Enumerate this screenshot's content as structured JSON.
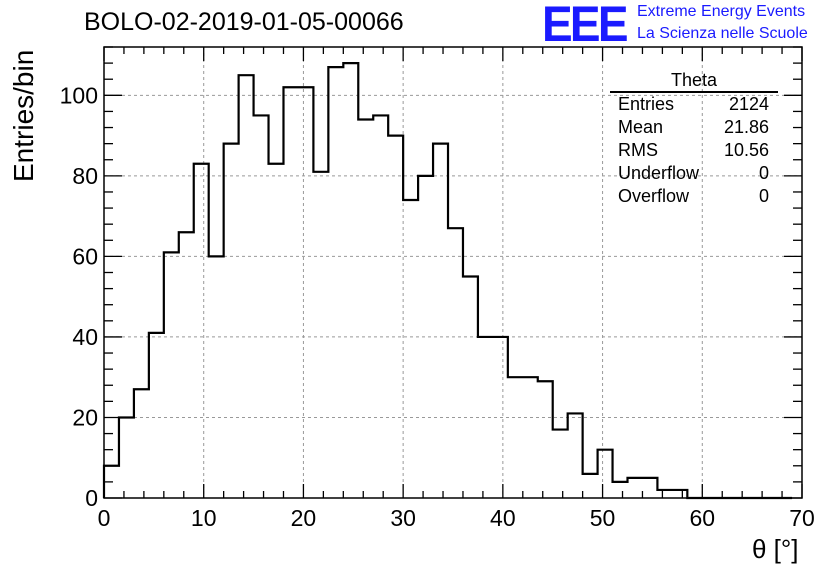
{
  "title": "BOLO-02-2019-01-05-00066",
  "logo": {
    "mark": "EEE",
    "line1": "Extreme Energy Events",
    "line2": "La Scienza nelle Scuole",
    "color": "#1a1aff"
  },
  "stats_box": {
    "title": "Theta",
    "rows": [
      {
        "label": "Entries",
        "value": "2124"
      },
      {
        "label": "Mean",
        "value": "21.86"
      },
      {
        "label": "RMS",
        "value": "10.56"
      },
      {
        "label": "Underflow",
        "value": "0"
      },
      {
        "label": "Overflow",
        "value": "0"
      }
    ]
  },
  "chart_data": {
    "type": "bar",
    "style": "step-histogram",
    "title": "BOLO-02-2019-01-05-00066",
    "xlabel": "θ [°]",
    "ylabel": "Entries/bin",
    "xlim": [
      0,
      70
    ],
    "ylim": [
      0,
      112
    ],
    "bin_width": 1.5,
    "x_start": 0,
    "x_ticks": [
      0,
      10,
      20,
      30,
      40,
      50,
      60,
      70
    ],
    "y_ticks": [
      0,
      20,
      40,
      60,
      80,
      100
    ],
    "grid": true,
    "values": [
      8,
      20,
      27,
      41,
      61,
      66,
      83,
      60,
      88,
      105,
      95,
      83,
      102,
      102,
      81,
      107,
      108,
      94,
      95,
      90,
      74,
      80,
      88,
      67,
      55,
      40,
      40,
      30,
      30,
      29,
      17,
      21,
      6,
      12,
      4,
      5,
      5,
      2,
      2,
      0,
      0,
      0,
      0,
      0,
      0,
      0
    ]
  }
}
